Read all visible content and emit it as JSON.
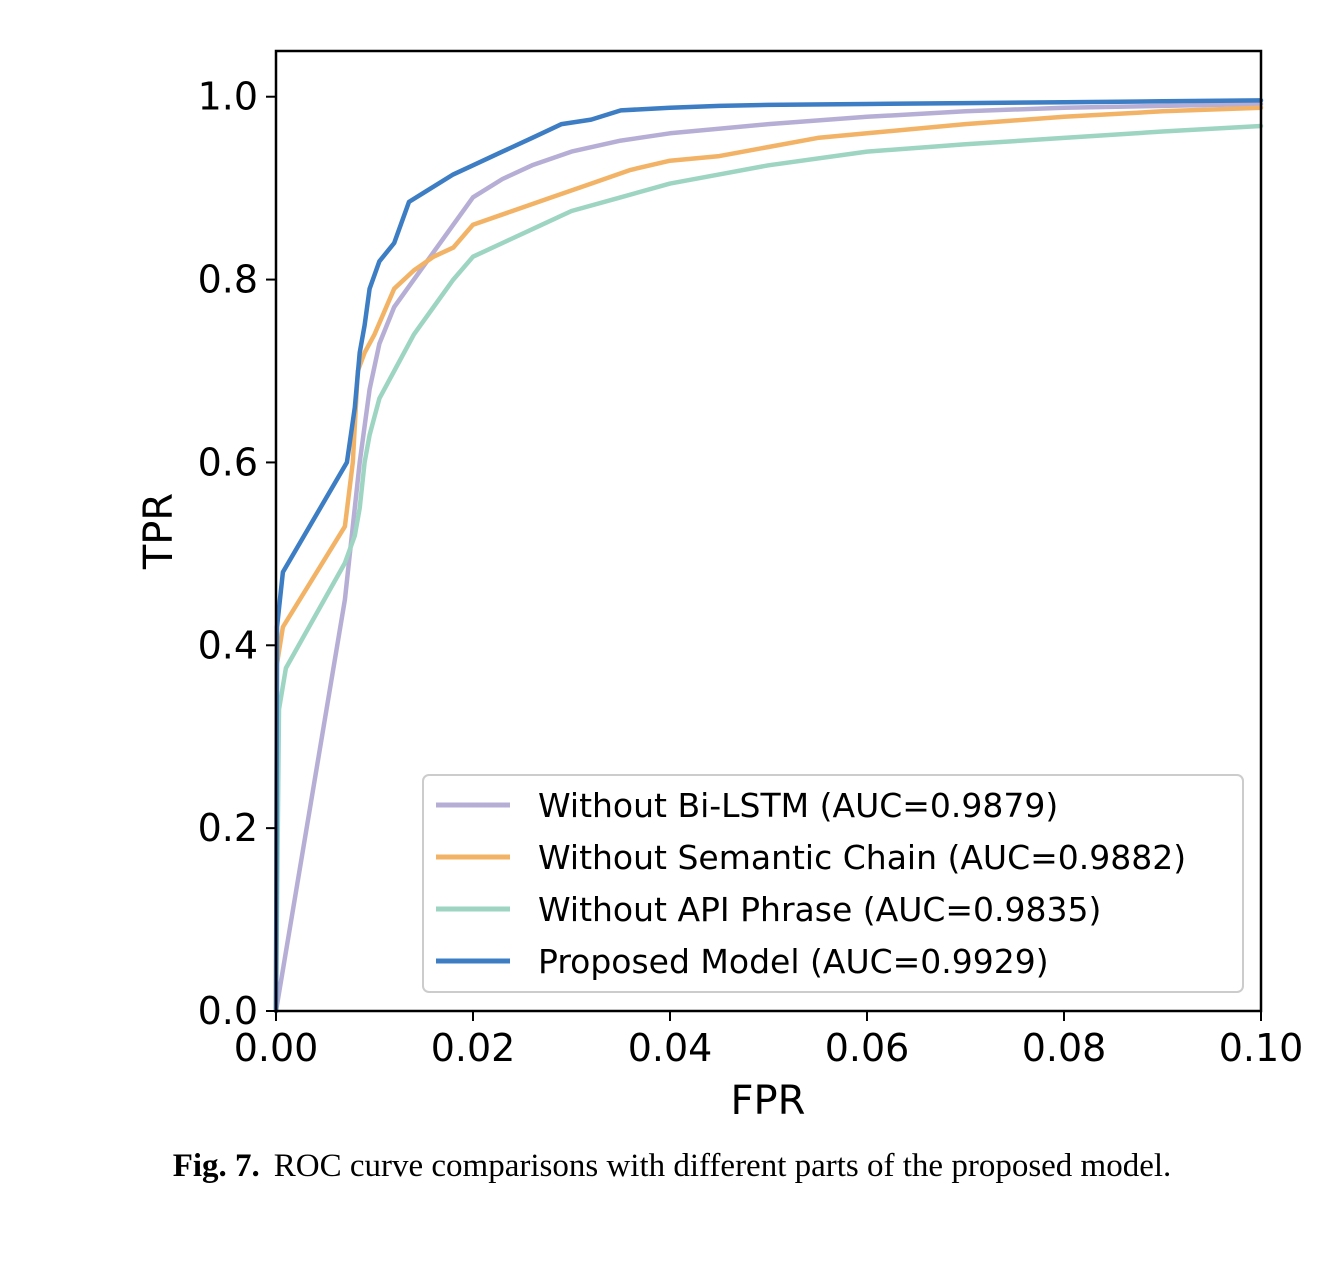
{
  "caption": {
    "label": "Fig. 7.",
    "text": "ROC curve comparisons with different parts of the proposed model."
  },
  "chart_data": {
    "type": "line",
    "title": "",
    "xlabel": "FPR",
    "ylabel": "TPR",
    "xlim": [
      0,
      0.1
    ],
    "ylim": [
      0,
      1.05
    ],
    "xticks": [
      "0.00",
      "0.02",
      "0.04",
      "0.06",
      "0.08",
      "0.10"
    ],
    "yticks": [
      "0.0",
      "0.2",
      "0.4",
      "0.6",
      "0.8",
      "1.0"
    ],
    "grid": false,
    "legend_position": "lower-right",
    "series": [
      {
        "name": "Without Bi-LSTM (AUC=0.9879)",
        "color": "#b7aed6",
        "x": [
          0,
          0.007,
          0.0085,
          0.0095,
          0.0105,
          0.012,
          0.014,
          0.016,
          0.018,
          0.02,
          0.023,
          0.026,
          0.03,
          0.035,
          0.04,
          0.05,
          0.06,
          0.07,
          0.08,
          0.09,
          0.1
        ],
        "y": [
          0,
          0.45,
          0.6,
          0.68,
          0.73,
          0.77,
          0.8,
          0.83,
          0.86,
          0.89,
          0.91,
          0.925,
          0.94,
          0.952,
          0.96,
          0.97,
          0.978,
          0.984,
          0.988,
          0.99,
          0.992
        ]
      },
      {
        "name": "Without Semantic Chain (AUC=0.9882)",
        "color": "#f2b366",
        "x": [
          0,
          0.0001,
          0.0007,
          0.007,
          0.0078,
          0.0083,
          0.009,
          0.01,
          0.012,
          0.014,
          0.016,
          0.018,
          0.02,
          0.024,
          0.028,
          0.032,
          0.036,
          0.04,
          0.045,
          0.05,
          0.055,
          0.06,
          0.07,
          0.08,
          0.09,
          0.1
        ],
        "y": [
          0,
          0.38,
          0.42,
          0.53,
          0.6,
          0.7,
          0.72,
          0.74,
          0.79,
          0.81,
          0.825,
          0.835,
          0.86,
          0.875,
          0.89,
          0.905,
          0.92,
          0.93,
          0.935,
          0.945,
          0.955,
          0.96,
          0.97,
          0.978,
          0.984,
          0.988
        ]
      },
      {
        "name": "Without API Phrase (AUC=0.9835)",
        "color": "#9dd5c2",
        "x": [
          0,
          0.0003,
          0.001,
          0.007,
          0.008,
          0.0085,
          0.009,
          0.0095,
          0.0105,
          0.012,
          0.014,
          0.016,
          0.018,
          0.02,
          0.023,
          0.027,
          0.03,
          0.035,
          0.04,
          0.045,
          0.05,
          0.06,
          0.07,
          0.08,
          0.09,
          0.1
        ],
        "y": [
          0,
          0.33,
          0.375,
          0.49,
          0.52,
          0.55,
          0.6,
          0.63,
          0.67,
          0.7,
          0.74,
          0.77,
          0.8,
          0.825,
          0.84,
          0.86,
          0.875,
          0.89,
          0.905,
          0.915,
          0.925,
          0.94,
          0.948,
          0.955,
          0.962,
          0.968
        ]
      },
      {
        "name": "Proposed Model (AUC=0.9929)",
        "color": "#3d7dc4",
        "x": [
          0,
          0.0001,
          0.0007,
          0.0072,
          0.008,
          0.0085,
          0.009,
          0.0095,
          0.0105,
          0.012,
          0.0135,
          0.015,
          0.018,
          0.02,
          0.023,
          0.026,
          0.029,
          0.032,
          0.035,
          0.04,
          0.045,
          0.05,
          0.06,
          0.07,
          0.08,
          0.09,
          0.1
        ],
        "y": [
          0,
          0.42,
          0.48,
          0.6,
          0.66,
          0.72,
          0.75,
          0.79,
          0.82,
          0.84,
          0.885,
          0.895,
          0.915,
          0.925,
          0.94,
          0.955,
          0.97,
          0.975,
          0.985,
          0.988,
          0.99,
          0.991,
          0.992,
          0.993,
          0.994,
          0.995,
          0.996
        ]
      }
    ]
  }
}
